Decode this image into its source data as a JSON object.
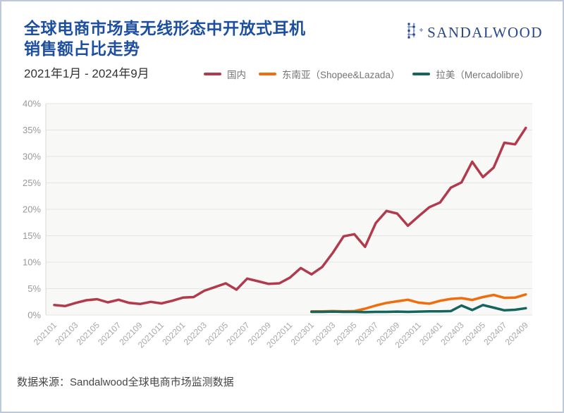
{
  "card": {
    "title_line1": "全球电商市场真无线形态中开放式耳机",
    "title_line2": "销售额占比走势",
    "subtitle": "2021年1月 - 2024年9月",
    "logo_text": "SANDALWOOD",
    "source": "数据来源：Sandalwood全球电商市场监测数据"
  },
  "colors": {
    "title_blue": "#1d4fa1",
    "logo_navy": "#28478f",
    "grid": "#e3e3e1",
    "axis_line": "#d9d9d9",
    "plot_bg": "#f8f8f6",
    "y_label": "#999999",
    "x_label": "#a8a8a8",
    "card_border": "#bcc9da"
  },
  "chart_data": {
    "type": "line",
    "title": "全球电商市场真无线形态中开放式耳机销售额占比走势",
    "period": "2021年1月 - 2024年9月",
    "x_months_total": 45,
    "x_tick_step": 2,
    "x_tick_labels": [
      "202101",
      "202103",
      "202105",
      "202107",
      "202109",
      "2021011",
      "202201",
      "202203",
      "202205",
      "202207",
      "202209",
      "2022011",
      "202301",
      "202303",
      "202305",
      "202307",
      "202309",
      "2023011",
      "202401",
      "202403",
      "202405",
      "202407",
      "202409"
    ],
    "ylim": [
      0,
      40
    ],
    "y_tick_step": 5,
    "y_unit": "%",
    "grid": true,
    "legend_position": "top",
    "series": [
      {
        "name": "国内",
        "color": "#b13a4c",
        "start": 0,
        "values": [
          1.9,
          1.7,
          2.3,
          2.8,
          3.0,
          2.4,
          2.9,
          2.3,
          2.1,
          2.5,
          2.2,
          2.7,
          3.3,
          3.4,
          4.6,
          5.3,
          6.0,
          4.8,
          6.9,
          6.4,
          5.9,
          6.0,
          7.1,
          8.9,
          7.7,
          9.1,
          11.8,
          14.9,
          15.3,
          12.9,
          17.4,
          19.7,
          19.2,
          16.9,
          18.7,
          20.4,
          21.3,
          24.1,
          25.1,
          29.0,
          26.1,
          27.9,
          32.6,
          32.3,
          35.4
        ]
      },
      {
        "name": "东南亚（Shopee&Lazada）",
        "color": "#f16c0c",
        "start": 24,
        "values": [
          0.7,
          0.7,
          0.75,
          0.7,
          0.75,
          1.2,
          1.8,
          2.3,
          2.6,
          2.9,
          2.35,
          2.15,
          2.7,
          3.05,
          3.2,
          2.85,
          3.4,
          3.8,
          3.25,
          3.3,
          3.9
        ]
      },
      {
        "name": "拉美（Mercadolibre）",
        "color": "#15655f",
        "start": 24,
        "values": [
          0.6,
          0.6,
          0.65,
          0.6,
          0.6,
          0.55,
          0.6,
          0.6,
          0.65,
          0.6,
          0.65,
          0.7,
          0.7,
          0.75,
          1.8,
          0.95,
          1.9,
          1.4,
          0.9,
          1.0,
          1.3
        ]
      }
    ]
  }
}
